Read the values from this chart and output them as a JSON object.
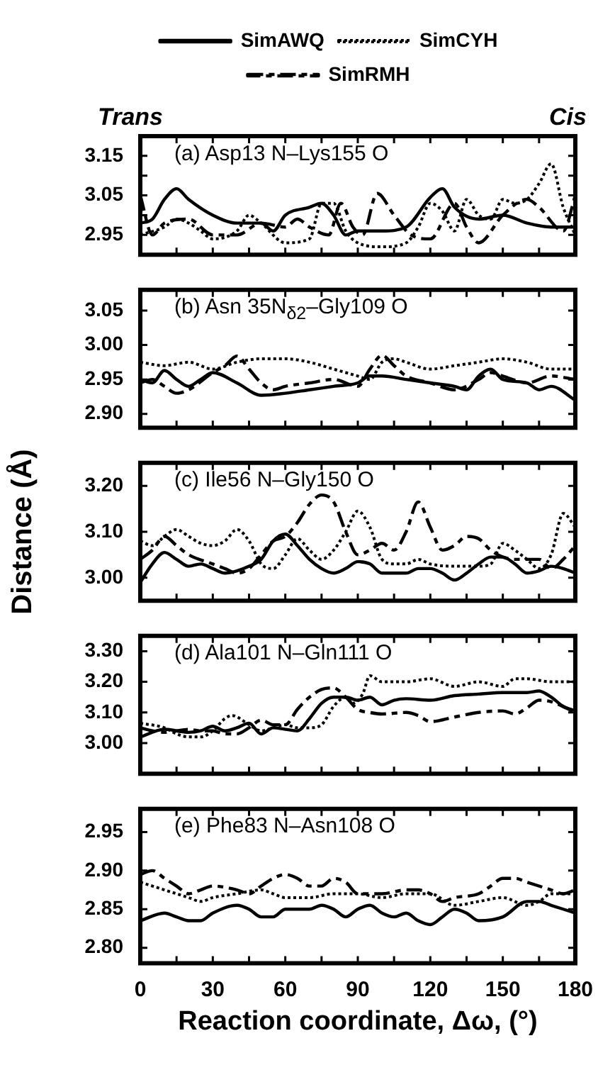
{
  "chart_data": [
    {
      "type": "line",
      "title": "(a) Asp13 N–Lys155 O",
      "annotations": [
        "Trans",
        "Cis"
      ],
      "legend": "top",
      "tick_labels": "y",
      "xlim": [
        0,
        180
      ],
      "xticks": [
        0,
        {
          "value": 15,
          "label": null
        },
        30,
        {
          "value": 45,
          "label": null
        },
        60,
        {
          "value": 75,
          "label": null
        },
        90,
        {
          "value": 105,
          "label": null
        },
        120,
        {
          "value": 135,
          "label": null
        },
        150,
        {
          "value": 165,
          "label": null
        },
        180
      ],
      "ylim": [
        2.9,
        3.2
      ],
      "yticks": [
        2.95,
        {
          "value": 3.0,
          "label": null
        },
        3.05,
        {
          "value": 3.1,
          "label": null
        },
        3.15
      ],
      "series": [
        {
          "name": "SimAWQ",
          "color": "#000000",
          "line_style": "solid",
          "x": [
            0,
            5,
            10,
            15,
            20,
            30,
            40,
            50,
            55,
            60,
            70,
            75,
            80,
            85,
            90,
            100,
            110,
            120,
            125,
            130,
            140,
            150,
            160,
            170,
            180
          ],
          "values": [
            2.98,
            2.99,
            3.04,
            3.067,
            3.04,
            3.0,
            2.98,
            2.98,
            2.96,
            3.0,
            3.02,
            3.03,
            3.0,
            2.95,
            2.96,
            2.96,
            2.97,
            3.045,
            3.067,
            3.02,
            2.99,
            3.0,
            2.98,
            2.97,
            2.97
          ]
        },
        {
          "name": "SimCYH",
          "color": "#000000",
          "line_style": "dotted",
          "x": [
            0,
            10,
            15,
            20,
            25,
            30,
            40,
            45,
            50,
            60,
            70,
            75,
            80,
            85,
            90,
            100,
            110,
            115,
            120,
            125,
            130,
            135,
            140,
            145,
            150,
            155,
            160,
            165,
            170,
            175,
            180
          ],
          "values": [
            2.95,
            2.97,
            2.99,
            2.98,
            2.96,
            2.94,
            2.96,
            3.0,
            2.98,
            2.93,
            2.94,
            3.03,
            3.03,
            2.96,
            2.93,
            2.92,
            2.93,
            2.97,
            3.03,
            3.01,
            2.96,
            3.04,
            3.0,
            2.99,
            3.04,
            3.03,
            3.04,
            3.08,
            3.13,
            3.02,
            2.95
          ]
        },
        {
          "name": "SimRMH",
          "color": "#000000",
          "line_style": "dashed",
          "x": [
            0,
            5,
            10,
            20,
            30,
            40,
            50,
            60,
            65,
            70,
            78,
            83,
            88,
            92,
            98,
            105,
            112,
            120,
            130,
            135,
            140,
            150,
            160,
            165,
            175,
            180
          ],
          "values": [
            3.05,
            2.95,
            2.98,
            2.99,
            2.95,
            2.95,
            2.98,
            2.97,
            2.99,
            2.97,
            2.95,
            3.03,
            2.97,
            2.95,
            3.055,
            3.0,
            2.95,
            2.94,
            3.03,
            2.97,
            2.93,
            3.0,
            3.04,
            3.02,
            2.96,
            3.05
          ]
        }
      ]
    },
    {
      "type": "line",
      "title": "(b) Asn 35N$_{δ2}$–Gly109 O",
      "tick_labels": "y",
      "xlim": [
        0,
        180
      ],
      "xticks": [
        0,
        {
          "value": 15,
          "label": null
        },
        30,
        {
          "value": 45,
          "label": null
        },
        60,
        {
          "value": 75,
          "label": null
        },
        90,
        {
          "value": 105,
          "label": null
        },
        120,
        {
          "value": 135,
          "label": null
        },
        150,
        {
          "value": 165,
          "label": null
        },
        180
      ],
      "ylim": [
        2.88,
        3.08
      ],
      "yticks": [
        {
          "value": 2.9,
          "label": "2.90"
        },
        2.95,
        {
          "value": 3.0,
          "label": "3.00"
        },
        3.05
      ],
      "series": [
        {
          "color": "#000000",
          "line_style": "solid",
          "x": [
            0,
            5,
            10,
            15,
            20,
            25,
            30,
            40,
            50,
            60,
            70,
            80,
            90,
            95,
            100,
            110,
            120,
            130,
            135,
            140,
            145,
            150,
            160,
            165,
            170,
            180
          ],
          "values": [
            2.95,
            2.945,
            2.963,
            2.95,
            2.94,
            2.95,
            2.96,
            2.945,
            2.927,
            2.93,
            2.935,
            2.94,
            2.945,
            2.955,
            2.955,
            2.95,
            2.945,
            2.94,
            2.935,
            2.955,
            2.965,
            2.95,
            2.945,
            2.935,
            2.94,
            2.92
          ]
        },
        {
          "color": "#000000",
          "line_style": "dotted",
          "x": [
            0,
            10,
            20,
            30,
            40,
            50,
            60,
            70,
            80,
            90,
            95,
            100,
            105,
            110,
            120,
            130,
            140,
            150,
            160,
            170,
            180
          ],
          "values": [
            2.975,
            2.97,
            2.975,
            2.965,
            2.975,
            2.98,
            2.98,
            2.975,
            2.965,
            2.955,
            2.95,
            2.975,
            2.98,
            2.975,
            2.965,
            2.97,
            2.975,
            2.98,
            2.975,
            2.965,
            2.965
          ]
        },
        {
          "color": "#000000",
          "line_style": "dashed",
          "x": [
            0,
            5,
            10,
            15,
            20,
            30,
            35,
            40,
            45,
            50,
            55,
            60,
            70,
            80,
            90,
            95,
            100,
            105,
            110,
            120,
            130,
            140,
            145,
            150,
            160,
            170,
            180
          ],
          "values": [
            2.945,
            2.95,
            2.94,
            2.93,
            2.935,
            2.96,
            2.97,
            2.984,
            2.965,
            2.945,
            2.935,
            2.94,
            2.945,
            2.95,
            2.94,
            2.965,
            2.985,
            2.97,
            2.955,
            2.945,
            2.935,
            2.95,
            2.96,
            2.955,
            2.945,
            2.955,
            2.95
          ]
        }
      ]
    },
    {
      "type": "line",
      "title": "(c) Ile56 N–Gly150 O",
      "ylabel": "Distance (Å)",
      "tick_labels": "y",
      "xlim": [
        0,
        180
      ],
      "xticks": [
        0,
        {
          "value": 15,
          "label": null
        },
        30,
        {
          "value": 45,
          "label": null
        },
        60,
        {
          "value": 75,
          "label": null
        },
        90,
        {
          "value": 105,
          "label": null
        },
        120,
        {
          "value": 135,
          "label": null
        },
        150,
        {
          "value": 165,
          "label": null
        },
        180
      ],
      "ylim": [
        2.95,
        3.25
      ],
      "yticks": [
        {
          "value": 3.0,
          "label": "3.00"
        },
        {
          "value": 3.1,
          "label": "3.10"
        },
        {
          "value": 3.2,
          "label": "3.20"
        }
      ],
      "series": [
        {
          "color": "#000000",
          "line_style": "solid",
          "x": [
            0,
            5,
            10,
            15,
            20,
            25,
            30,
            35,
            40,
            45,
            50,
            55,
            60,
            65,
            70,
            75,
            80,
            85,
            90,
            95,
            100,
            110,
            115,
            120,
            125,
            130,
            135,
            140,
            145,
            150,
            155,
            160,
            165,
            170,
            175,
            180
          ],
          "values": [
            2.99,
            3.03,
            3.055,
            3.04,
            3.025,
            3.03,
            3.02,
            3.01,
            3.015,
            3.025,
            3.04,
            3.08,
            3.095,
            3.07,
            3.04,
            3.02,
            3.01,
            3.02,
            3.035,
            3.03,
            3.01,
            3.01,
            3.02,
            3.02,
            3.01,
            2.995,
            3.01,
            3.03,
            3.045,
            3.045,
            3.03,
            3.01,
            3.015,
            3.025,
            3.02,
            3.01
          ]
        },
        {
          "color": "#000000",
          "line_style": "dotted",
          "x": [
            0,
            5,
            10,
            15,
            20,
            25,
            30,
            35,
            40,
            45,
            50,
            55,
            60,
            65,
            70,
            75,
            80,
            85,
            90,
            95,
            100,
            105,
            110,
            115,
            120,
            130,
            140,
            145,
            150,
            155,
            160,
            165,
            170,
            175,
            180
          ],
          "values": [
            3.08,
            3.07,
            3.09,
            3.105,
            3.09,
            3.075,
            3.07,
            3.08,
            3.105,
            3.08,
            3.03,
            3.02,
            3.05,
            3.085,
            3.06,
            3.04,
            3.06,
            3.1,
            3.145,
            3.11,
            3.04,
            3.03,
            3.03,
            3.04,
            3.03,
            3.025,
            3.025,
            3.03,
            3.075,
            3.06,
            3.04,
            3.02,
            3.05,
            3.14,
            3.11
          ]
        },
        {
          "color": "#000000",
          "line_style": "dashed",
          "x": [
            0,
            5,
            10,
            15,
            20,
            30,
            35,
            40,
            45,
            50,
            55,
            60,
            65,
            70,
            75,
            80,
            85,
            90,
            95,
            100,
            105,
            110,
            115,
            120,
            125,
            130,
            135,
            140,
            145,
            150,
            155,
            160,
            165,
            170,
            175,
            180
          ],
          "values": [
            3.04,
            3.06,
            3.09,
            3.07,
            3.05,
            3.03,
            3.02,
            3.01,
            3.02,
            3.05,
            3.08,
            3.09,
            3.12,
            3.16,
            3.18,
            3.165,
            3.1,
            3.05,
            3.06,
            3.075,
            3.06,
            3.1,
            3.165,
            3.11,
            3.06,
            3.07,
            3.09,
            3.085,
            3.06,
            3.045,
            3.04,
            3.04,
            3.04,
            3.02,
            3.04,
            3.07
          ]
        }
      ]
    },
    {
      "type": "line",
      "title": "(d) Ala101 N–Gln111 O",
      "tick_labels": "y",
      "xlim": [
        0,
        180
      ],
      "xticks": [
        0,
        {
          "value": 15,
          "label": null
        },
        30,
        {
          "value": 45,
          "label": null
        },
        60,
        {
          "value": 75,
          "label": null
        },
        90,
        {
          "value": 105,
          "label": null
        },
        120,
        {
          "value": 135,
          "label": null
        },
        150,
        {
          "value": 165,
          "label": null
        },
        180
      ],
      "ylim": [
        2.9,
        3.35
      ],
      "yticks": [
        {
          "value": 3.0,
          "label": "3.00"
        },
        {
          "value": 3.1,
          "label": "3.10"
        },
        {
          "value": 3.2,
          "label": "3.20"
        },
        {
          "value": 3.3,
          "label": "3.30"
        }
      ],
      "series": [
        {
          "color": "#000000",
          "line_style": "solid",
          "x": [
            0,
            10,
            20,
            25,
            30,
            35,
            40,
            45,
            50,
            55,
            60,
            65,
            70,
            75,
            80,
            85,
            90,
            95,
            100,
            105,
            110,
            120,
            130,
            140,
            150,
            160,
            165,
            170,
            175,
            180
          ],
          "values": [
            3.02,
            3.045,
            3.035,
            3.04,
            3.055,
            3.04,
            3.05,
            3.065,
            3.03,
            3.05,
            3.045,
            3.04,
            3.08,
            3.13,
            3.15,
            3.15,
            3.14,
            3.15,
            3.125,
            3.14,
            3.145,
            3.14,
            3.155,
            3.16,
            3.165,
            3.165,
            3.17,
            3.15,
            3.12,
            3.105
          ]
        },
        {
          "color": "#000000",
          "line_style": "dotted",
          "x": [
            0,
            10,
            15,
            20,
            25,
            30,
            35,
            38,
            45,
            50,
            55,
            60,
            65,
            70,
            75,
            80,
            85,
            88,
            92,
            95,
            100,
            110,
            120,
            130,
            140,
            150,
            155,
            160,
            170,
            180
          ],
          "values": [
            3.065,
            3.05,
            3.03,
            3.02,
            3.02,
            3.04,
            3.08,
            3.09,
            3.06,
            3.04,
            3.05,
            3.06,
            3.05,
            3.05,
            3.06,
            3.12,
            3.15,
            3.13,
            3.16,
            3.22,
            3.2,
            3.2,
            3.21,
            3.185,
            3.2,
            3.185,
            3.21,
            3.21,
            3.2,
            3.2
          ]
        },
        {
          "color": "#000000",
          "line_style": "dashed",
          "x": [
            0,
            5,
            10,
            15,
            20,
            25,
            30,
            35,
            40,
            45,
            50,
            55,
            60,
            65,
            70,
            75,
            80,
            85,
            90,
            95,
            100,
            110,
            115,
            120,
            130,
            140,
            150,
            155,
            160,
            165,
            170,
            180
          ],
          "values": [
            3.05,
            3.04,
            3.035,
            3.04,
            3.045,
            3.04,
            3.04,
            3.03,
            3.03,
            3.05,
            3.075,
            3.06,
            3.06,
            3.11,
            3.15,
            3.175,
            3.18,
            3.15,
            3.11,
            3.1,
            3.095,
            3.1,
            3.09,
            3.07,
            3.085,
            3.1,
            3.105,
            3.095,
            3.115,
            3.14,
            3.135,
            3.1
          ]
        }
      ]
    },
    {
      "type": "line",
      "title": "(e) Phe83 N–Asn108 O",
      "xlabel": "Reaction coordinate, Δω, (°)",
      "xlim": [
        0,
        180
      ],
      "xticks": [
        0,
        {
          "value": 15,
          "label": null
        },
        30,
        {
          "value": 45,
          "label": null
        },
        60,
        {
          "value": 75,
          "label": null
        },
        90,
        {
          "value": 105,
          "label": null
        },
        120,
        {
          "value": 135,
          "label": null
        },
        150,
        {
          "value": 165,
          "label": null
        },
        180
      ],
      "ylim": [
        2.78,
        2.98
      ],
      "yticks": [
        {
          "value": 2.8,
          "label": "2.80"
        },
        2.85,
        {
          "value": 2.9,
          "label": "2.90"
        },
        2.95
      ],
      "series": [
        {
          "color": "#000000",
          "line_style": "solid",
          "x": [
            0,
            10,
            15,
            20,
            25,
            30,
            40,
            45,
            50,
            55,
            60,
            70,
            75,
            80,
            85,
            90,
            95,
            100,
            105,
            110,
            115,
            120,
            125,
            130,
            135,
            140,
            150,
            160,
            165,
            170,
            180
          ],
          "values": [
            2.835,
            2.845,
            2.84,
            2.835,
            2.835,
            2.845,
            2.855,
            2.85,
            2.84,
            2.84,
            2.85,
            2.85,
            2.855,
            2.85,
            2.84,
            2.85,
            2.855,
            2.845,
            2.84,
            2.845,
            2.835,
            2.83,
            2.84,
            2.85,
            2.845,
            2.835,
            2.84,
            2.86,
            2.86,
            2.855,
            2.845
          ]
        },
        {
          "color": "#000000",
          "line_style": "dotted",
          "x": [
            0,
            10,
            20,
            25,
            30,
            40,
            50,
            55,
            60,
            70,
            80,
            90,
            100,
            110,
            120,
            130,
            140,
            150,
            160,
            165,
            170,
            180
          ],
          "values": [
            2.885,
            2.875,
            2.865,
            2.86,
            2.865,
            2.87,
            2.875,
            2.87,
            2.865,
            2.865,
            2.87,
            2.87,
            2.865,
            2.87,
            2.87,
            2.855,
            2.86,
            2.865,
            2.855,
            2.86,
            2.87,
            2.87
          ]
        },
        {
          "color": "#000000",
          "line_style": "dashed",
          "x": [
            0,
            5,
            10,
            15,
            20,
            25,
            30,
            40,
            45,
            50,
            55,
            60,
            65,
            70,
            75,
            80,
            85,
            90,
            100,
            110,
            115,
            120,
            125,
            130,
            140,
            145,
            150,
            155,
            160,
            170,
            175,
            180
          ],
          "values": [
            2.895,
            2.9,
            2.89,
            2.88,
            2.87,
            2.875,
            2.88,
            2.875,
            2.87,
            2.88,
            2.89,
            2.895,
            2.89,
            2.88,
            2.88,
            2.89,
            2.885,
            2.87,
            2.87,
            2.875,
            2.875,
            2.87,
            2.86,
            2.865,
            2.87,
            2.88,
            2.89,
            2.89,
            2.885,
            2.875,
            2.87,
            2.875
          ]
        }
      ]
    }
  ]
}
